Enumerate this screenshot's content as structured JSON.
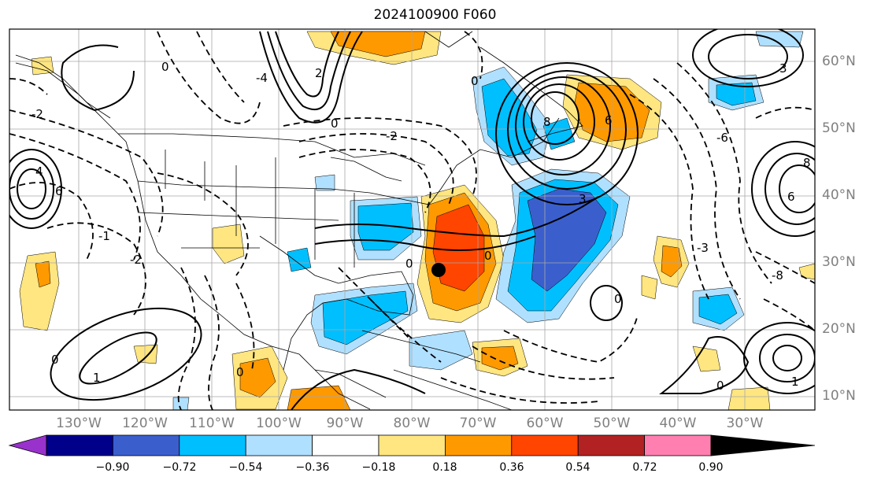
{
  "title": "2024100900 F060",
  "map": {
    "latitude_labels": [
      "60°N",
      "50°N",
      "40°N",
      "30°N",
      "20°N",
      "10°N"
    ],
    "longitude_labels": [
      "130°W",
      "120°W",
      "110°W",
      "100°W",
      "90°W",
      "80°W",
      "70°W",
      "60°W",
      "50°W",
      "40°W",
      "30°W"
    ],
    "contour_labels": [
      "0",
      "2",
      "4",
      "6",
      "8",
      "1",
      "3",
      "-1",
      "-2",
      "-3",
      "-4",
      "-6",
      "-8"
    ],
    "storm_marker": "black-dot-center",
    "colors": {
      "lat_lon_labels": "#808080",
      "gridlines": "#a0a0a0",
      "coastlines": "#000000",
      "contours": "#000000"
    }
  },
  "colorbar": {
    "tick_labels": [
      "−0.90",
      "−0.72",
      "−0.54",
      "−0.36",
      "−0.18",
      "0.18",
      "0.36",
      "0.54",
      "0.72",
      "0.90"
    ],
    "bins": [
      {
        "color": "#9932cc"
      },
      {
        "color": "#00008b"
      },
      {
        "color": "#3a5fcd"
      },
      {
        "color": "#00bfff"
      },
      {
        "color": "#b0e0ff"
      },
      {
        "color": "#ffffff"
      },
      {
        "color": "#ffe680"
      },
      {
        "color": "#ff9900"
      },
      {
        "color": "#ff4500"
      },
      {
        "color": "#b22222"
      },
      {
        "color": "#ff80b0"
      }
    ]
  }
}
